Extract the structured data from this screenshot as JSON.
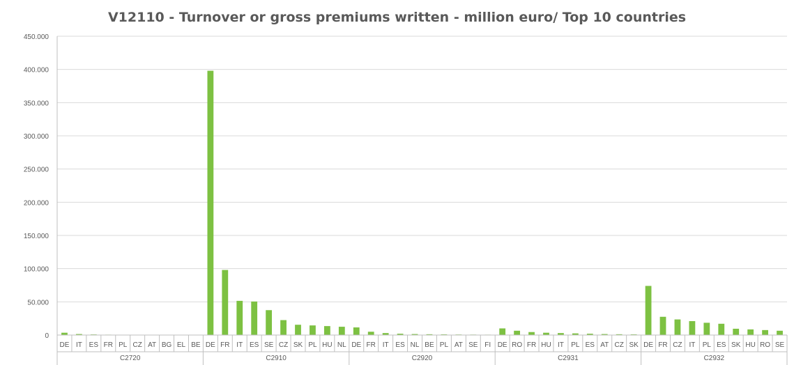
{
  "chart_data": {
    "type": "bar",
    "title": "V12110 - Turnover or gross premiums written - million euro/ Top 10 countries",
    "xlabel": "",
    "ylabel": "",
    "ylim": [
      0,
      450000
    ],
    "yticks": [
      0,
      50000,
      100000,
      150000,
      200000,
      250000,
      300000,
      350000,
      400000,
      450000
    ],
    "ytick_labels": [
      "0",
      "50.000",
      "100.000",
      "150.000",
      "200.000",
      "250.000",
      "300.000",
      "350.000",
      "400.000",
      "450.000"
    ],
    "grid": true,
    "legend": "none",
    "color": "#7dc142",
    "groups": [
      {
        "name": "C2720",
        "categories": [
          "DE",
          "IT",
          "ES",
          "FR",
          "PL",
          "CZ",
          "AT",
          "BG",
          "EL",
          "BE"
        ],
        "values": [
          3500,
          1500,
          900,
          600,
          500,
          300,
          200,
          150,
          100,
          80
        ]
      },
      {
        "name": "C2910",
        "categories": [
          "DE",
          "FR",
          "IT",
          "ES",
          "SE",
          "CZ",
          "SK",
          "PL",
          "HU",
          "NL"
        ],
        "values": [
          398000,
          98000,
          51500,
          50500,
          37500,
          22500,
          15500,
          14500,
          13500,
          12500
        ]
      },
      {
        "name": "C2920",
        "categories": [
          "DE",
          "FR",
          "IT",
          "ES",
          "NL",
          "BE",
          "PL",
          "AT",
          "SE",
          "FI"
        ],
        "values": [
          11500,
          5000,
          3000,
          2000,
          1500,
          1200,
          1000,
          800,
          700,
          600
        ]
      },
      {
        "name": "C2931",
        "categories": [
          "DE",
          "RO",
          "FR",
          "HU",
          "IT",
          "PL",
          "ES",
          "AT",
          "CZ",
          "SK"
        ],
        "values": [
          10000,
          6500,
          4500,
          3500,
          3000,
          2500,
          2000,
          1500,
          1200,
          1000
        ]
      },
      {
        "name": "C2932",
        "categories": [
          "DE",
          "FR",
          "CZ",
          "IT",
          "PL",
          "ES",
          "SK",
          "HU",
          "RO",
          "SE"
        ],
        "values": [
          74000,
          27500,
          23500,
          21000,
          18500,
          17000,
          9500,
          8500,
          7500,
          6500
        ]
      }
    ]
  }
}
